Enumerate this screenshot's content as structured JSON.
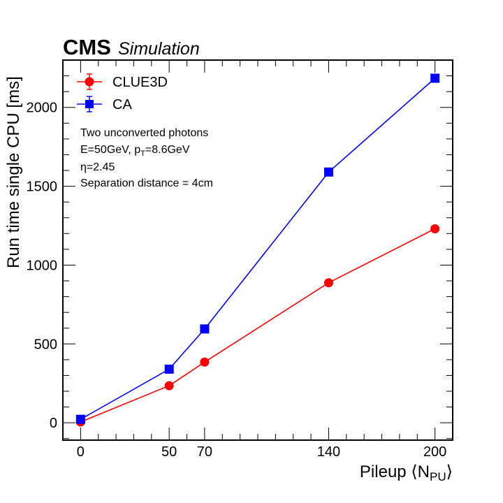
{
  "header": {
    "experiment": "CMS",
    "tag": "Simulation"
  },
  "annotation": {
    "line1": "Two unconverted photons",
    "line2_prefix": "E=50GeV, p",
    "line2_sub": "T",
    "line2_suffix": "=8.6GeV",
    "line3": "η=2.45",
    "line4": "Separation distance = 4cm"
  },
  "chart_data": {
    "type": "line",
    "x": [
      0,
      50,
      70,
      140,
      200
    ],
    "xlabel_prefix": "Pileup ⟨N",
    "xlabel_sub": "PU",
    "xlabel_suffix": "⟩",
    "ylabel": "Run time single CPU [ms]",
    "xlim": [
      -10,
      210
    ],
    "ylim": [
      -110,
      2300
    ],
    "x_ticks": [
      0,
      50,
      70,
      140,
      200
    ],
    "y_ticks": [
      0,
      500,
      1000,
      1500,
      2000
    ],
    "legend_position": "top-left",
    "grid": false,
    "series": [
      {
        "name": "CLUE3D",
        "marker": "circle",
        "color": "#ff0000",
        "values": [
          5,
          235,
          385,
          888,
          1230
        ]
      },
      {
        "name": "CA",
        "marker": "square",
        "color": "#0000ff",
        "values": [
          22,
          340,
          595,
          1590,
          2185
        ]
      }
    ]
  }
}
